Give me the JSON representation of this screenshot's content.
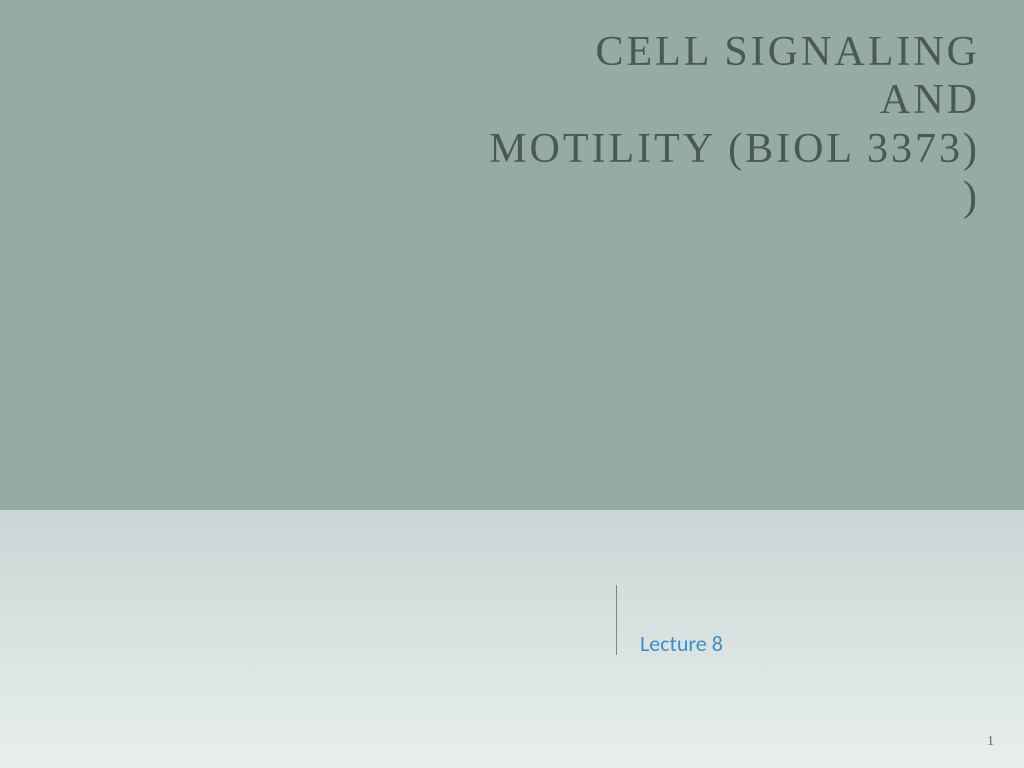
{
  "slide": {
    "background_upper": "#96aaa6",
    "background_lower_top": "#c9d6d5",
    "background_lower_bottom": "#e9efee",
    "title": {
      "line1": "CELL SIGNALING",
      "line2": "AND",
      "line3": "MOTILITY (BIOL 3373)",
      "line4": ")",
      "color": "#4a5a4f",
      "fontsize": 42
    },
    "divider_color": "#7a8a86",
    "subtitle": {
      "text": "Lecture 8",
      "color": "#3d8ec9",
      "fontsize": 22
    },
    "page_number": {
      "text": "1",
      "color": "#6a6a6a",
      "fontsize": 14
    }
  }
}
